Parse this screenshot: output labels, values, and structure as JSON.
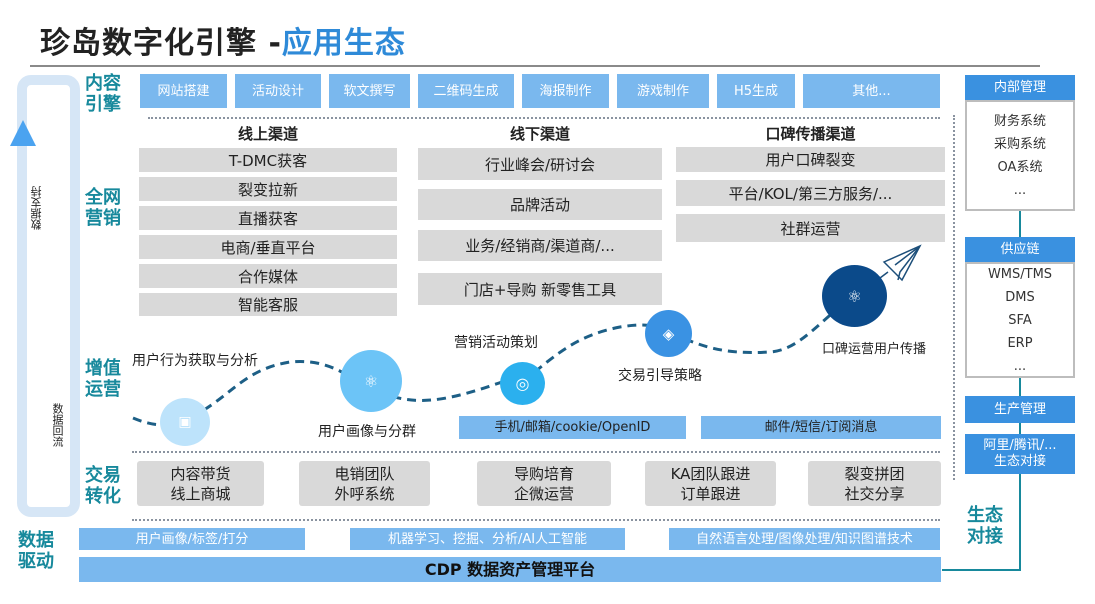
{
  "title": {
    "main": "珍岛数字化引擎 -",
    "highlight": "应用生态"
  },
  "loop": {
    "up_label": "数据支持",
    "down_label": "数据回流"
  },
  "sections": {
    "content": "内容引擎",
    "marketing": "全网营销",
    "value_ops": "增值运营",
    "trade": "交易转化",
    "data": "数据驱动",
    "eco": "生态对接"
  },
  "content_engine": [
    "网站搭建",
    "活动设计",
    "软文撰写",
    "二维码生成",
    "海报制作",
    "游戏制作",
    "H5生成",
    "其他..."
  ],
  "channels": [
    {
      "title": "线上渠道",
      "items": [
        "T-DMC获客",
        "裂变拉新",
        "直播获客",
        "电商/垂直平台",
        "合作媒体",
        "智能客服"
      ]
    },
    {
      "title": "线下渠道",
      "items": [
        "行业峰会/研讨会",
        "品牌活动",
        "业务/经销商/渠道商/...",
        "门店+导购 新零售工具"
      ]
    },
    {
      "title": "口碑传播渠道",
      "items": [
        "用户口碑裂变",
        "平台/KOL/第三方服务/...",
        "社群运营"
      ]
    }
  ],
  "value_ops": {
    "steps": [
      {
        "label": "用户行为获取与分析",
        "icon": "presentation-icon",
        "color": "#bde3fb"
      },
      {
        "label": "用户画像与分群",
        "icon": "atom-icon",
        "color": "#6cc4f7"
      },
      {
        "label": "营销活动策划",
        "icon": "target-icon",
        "color": "#2bb0ee"
      },
      {
        "label": "交易引导策略",
        "icon": "layers-icon",
        "color": "#3a92e3"
      },
      {
        "label": "口碑运营用户传播",
        "icon": "atom-icon",
        "color": "#0b4a8a"
      }
    ],
    "bars": [
      "手机/邮箱/cookie/OpenID",
      "邮件/短信/订阅消息"
    ]
  },
  "trade": [
    [
      "内容带货",
      "线上商城"
    ],
    [
      "电销团队",
      "外呼系统"
    ],
    [
      "导购培育",
      "企微运营"
    ],
    [
      "KA团队跟进",
      "订单跟进"
    ],
    [
      "裂变拼团",
      "社交分享"
    ]
  ],
  "data_driven": {
    "bars": [
      "用户画像/标签/打分",
      "机器学习、挖掘、分析/AI人工智能",
      "自然语言处理/图像处理/知识图谱技术"
    ],
    "platform": "CDP 数据资产管理平台"
  },
  "eco": {
    "internal": {
      "title": "内部管理",
      "items": [
        "财务系统",
        "采购系统",
        "OA系统",
        "..."
      ]
    },
    "supply": {
      "title": "供应链",
      "items": [
        "WMS/TMS",
        "DMS",
        "SFA",
        "ERP",
        "..."
      ]
    },
    "production": "生产管理",
    "partners": [
      "阿里/腾讯/...",
      "生态对接"
    ]
  },
  "colors": {
    "accent": "#2e8ad8",
    "section": "#17899c",
    "button": "#7ab8ee",
    "gray_box": "#d9d9d9",
    "eco_header": "#3a91e0"
  }
}
